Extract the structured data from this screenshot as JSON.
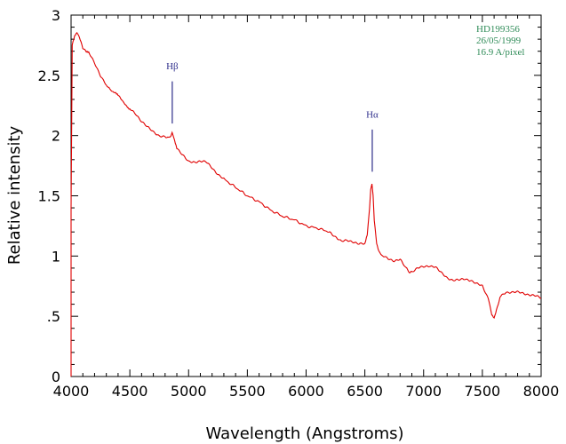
{
  "chart_data": {
    "type": "line",
    "title": "",
    "xlabel": "Wavelength (Angstroms)",
    "ylabel": "Relative intensity",
    "xlim": [
      4000,
      8000
    ],
    "ylim": [
      0,
      3
    ],
    "x_ticks": [
      4000,
      4500,
      5000,
      5500,
      6000,
      6500,
      7000,
      7500,
      8000
    ],
    "y_ticks": [
      {
        "value": 0,
        "label": "0"
      },
      {
        "value": 0.5,
        "label": ".5"
      },
      {
        "value": 1,
        "label": "1"
      },
      {
        "value": 1.5,
        "label": "1.5"
      },
      {
        "value": 2,
        "label": "2"
      },
      {
        "value": 2.5,
        "label": "2.5"
      },
      {
        "value": 3,
        "label": "3"
      }
    ],
    "x_minor_step": 100,
    "y_minor_step": 0.1,
    "series": [
      {
        "name": "HD199356 spectrum",
        "color": "#e00000",
        "x": [
          4000,
          4010,
          4030,
          4050,
          4070,
          4100,
          4130,
          4150,
          4200,
          4250,
          4300,
          4330,
          4350,
          4380,
          4400,
          4430,
          4450,
          4480,
          4500,
          4550,
          4600,
          4650,
          4700,
          4750,
          4800,
          4830,
          4850,
          4860,
          4870,
          4880,
          4900,
          4950,
          5000,
          5050,
          5100,
          5150,
          5200,
          5250,
          5300,
          5400,
          5500,
          5600,
          5700,
          5800,
          5900,
          6000,
          6100,
          6200,
          6250,
          6300,
          6350,
          6400,
          6450,
          6500,
          6520,
          6540,
          6550,
          6560,
          6570,
          6580,
          6600,
          6620,
          6650,
          6700,
          6750,
          6800,
          6850,
          6880,
          6900,
          6950,
          7000,
          7050,
          7100,
          7150,
          7200,
          7250,
          7300,
          7350,
          7400,
          7450,
          7500,
          7550,
          7580,
          7600,
          7620,
          7650,
          7700,
          7750,
          7800,
          7850,
          7900,
          7950,
          8000
        ],
        "y": [
          1.4,
          2.75,
          2.82,
          2.85,
          2.82,
          2.72,
          2.7,
          2.69,
          2.6,
          2.5,
          2.42,
          2.38,
          2.36,
          2.35,
          2.33,
          2.3,
          2.27,
          2.24,
          2.22,
          2.18,
          2.12,
          2.07,
          2.03,
          2.0,
          1.99,
          1.99,
          2.0,
          2.02,
          2.0,
          1.96,
          1.9,
          1.84,
          1.78,
          1.78,
          1.79,
          1.78,
          1.73,
          1.68,
          1.64,
          1.57,
          1.5,
          1.45,
          1.38,
          1.33,
          1.3,
          1.25,
          1.23,
          1.2,
          1.16,
          1.12,
          1.13,
          1.12,
          1.1,
          1.1,
          1.18,
          1.4,
          1.55,
          1.6,
          1.5,
          1.3,
          1.1,
          1.03,
          1.0,
          0.98,
          0.96,
          0.97,
          0.9,
          0.86,
          0.87,
          0.9,
          0.91,
          0.92,
          0.91,
          0.86,
          0.82,
          0.8,
          0.8,
          0.81,
          0.8,
          0.77,
          0.75,
          0.65,
          0.52,
          0.49,
          0.55,
          0.66,
          0.7,
          0.7,
          0.7,
          0.69,
          0.68,
          0.67,
          0.65
        ]
      }
    ],
    "annotations": [
      {
        "label": "Hβ",
        "wavelength": 4861,
        "line_from": 2.1,
        "line_to": 2.45,
        "text_value": 2.55
      },
      {
        "label": "Hα",
        "wavelength": 6563,
        "line_from": 1.7,
        "line_to": 2.05,
        "text_value": 2.15
      }
    ],
    "info_box": {
      "lines": [
        "HD199356",
        "26/05/1999",
        "16.9 A/pixel"
      ],
      "color": "#2e8b57",
      "position": "top-right"
    },
    "colors": {
      "axis": "#000000",
      "annotation": "#2e2e8b"
    }
  }
}
